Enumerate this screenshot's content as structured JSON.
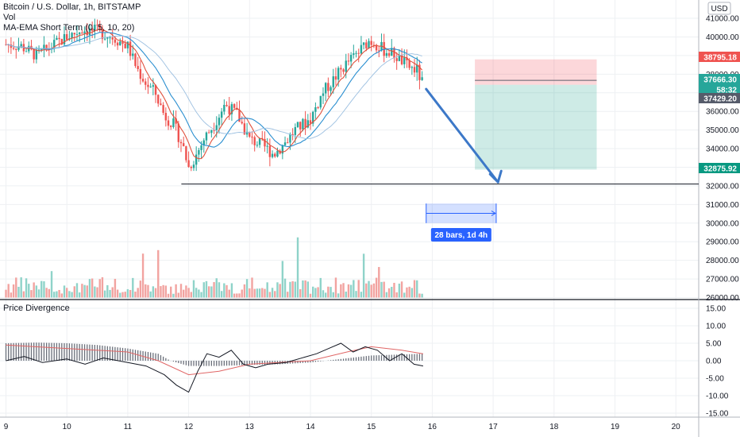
{
  "header": {
    "symbol": "Bitcoin / U.S. Dollar, 1h, BITSTAMP",
    "vol_label": "Vol",
    "ma_label": "MA-EMA Short Term (0, 5, 10, 20)",
    "currency": "USD"
  },
  "oscillator": {
    "title": "Price Divergence"
  },
  "price_tags": [
    {
      "value": "38795.18",
      "color": "#ef5350"
    },
    {
      "value": "37666.30",
      "color": "#26a69a"
    },
    {
      "value": "58:32",
      "color": "#26a69a"
    },
    {
      "value": "37429.20",
      "color": "#555b6a"
    },
    {
      "value": "32875.92",
      "color": "#089981"
    }
  ],
  "measure_label": "28 bars, 1d 4h",
  "colors": {
    "up": "#26a69a",
    "down": "#ef5350",
    "tp": "#089981",
    "arrow": "#3c78c8"
  },
  "chart_data": [
    {
      "type": "candlestick",
      "title": "Bitcoin / U.S. Dollar, 1h, BITSTAMP",
      "x_ticks": [
        "9",
        "10",
        "11",
        "12",
        "13",
        "14",
        "15",
        "16",
        "17",
        "18",
        "19",
        "20"
      ],
      "y_ticks": [
        26000,
        27000,
        28000,
        29000,
        30000,
        31000,
        32000,
        33000,
        34000,
        35000,
        36000,
        37000,
        38000,
        39000,
        40000,
        41000
      ],
      "ylim": [
        26000,
        41500
      ],
      "ohlc_path": [
        [
          9.0,
          39600
        ],
        [
          9.25,
          39500
        ],
        [
          9.5,
          39000
        ],
        [
          9.75,
          39500
        ],
        [
          10.0,
          40000
        ],
        [
          10.25,
          40400
        ],
        [
          10.5,
          40300
        ],
        [
          10.75,
          40000
        ],
        [
          11.0,
          39500
        ],
        [
          11.15,
          38300
        ],
        [
          11.3,
          37500
        ],
        [
          11.45,
          37000
        ],
        [
          11.6,
          35800
        ],
        [
          11.75,
          35300
        ],
        [
          11.9,
          34200
        ],
        [
          12.0,
          33000
        ],
        [
          12.1,
          33500
        ],
        [
          12.25,
          34500
        ],
        [
          12.45,
          35500
        ],
        [
          12.6,
          36400
        ],
        [
          12.8,
          35800
        ],
        [
          13.0,
          34500
        ],
        [
          13.2,
          34200
        ],
        [
          13.4,
          33700
        ],
        [
          13.55,
          34200
        ],
        [
          13.75,
          35000
        ],
        [
          14.0,
          35600
        ],
        [
          14.2,
          37000
        ],
        [
          14.4,
          37800
        ],
        [
          14.6,
          38600
        ],
        [
          14.8,
          39200
        ],
        [
          14.95,
          39800
        ],
        [
          15.05,
          39700
        ],
        [
          15.2,
          39300
        ],
        [
          15.35,
          39100
        ],
        [
          15.5,
          38700
        ],
        [
          15.6,
          38400
        ],
        [
          15.75,
          38200
        ],
        [
          15.85,
          37400
        ]
      ],
      "volume": {
        "y_range": [
          26000,
          30000
        ]
      },
      "moving_averages": [
        {
          "color": "#e0503c"
        },
        {
          "color": "#2a8fd0"
        },
        {
          "color": "#9bbfe0"
        }
      ],
      "annotations": {
        "support_line": 32100,
        "position": {
          "x_start": 16.7,
          "x_end": 18.7,
          "entry": 37429.2,
          "stop": 38795.18,
          "target": 32875.92
        },
        "arrow": {
          "from": [
            15.9,
            37200
          ],
          "to": [
            17.08,
            32200
          ]
        },
        "date_range": {
          "x_start": 15.9,
          "x_end": 17.05,
          "y_top": 31050,
          "y_bottom": 30000,
          "label": "28 bars, 1d 4h"
        }
      }
    },
    {
      "type": "line",
      "title": "Price Divergence",
      "y_ticks": [
        15,
        10,
        5,
        0,
        -5,
        -10,
        -15
      ],
      "ylim": [
        -17,
        17
      ],
      "series": [
        {
          "color": "#131722",
          "points": [
            [
              9.0,
              0
            ],
            [
              9.3,
              1.2
            ],
            [
              9.6,
              -0.5
            ],
            [
              10.0,
              0.5
            ],
            [
              10.3,
              -1
            ],
            [
              10.6,
              0.8
            ],
            [
              11.0,
              -0.5
            ],
            [
              11.3,
              -1.5
            ],
            [
              11.6,
              -4
            ],
            [
              11.8,
              -7
            ],
            [
              12.0,
              -9
            ],
            [
              12.15,
              -3
            ],
            [
              12.3,
              2
            ],
            [
              12.5,
              1
            ],
            [
              12.7,
              3
            ],
            [
              12.9,
              -1
            ],
            [
              13.1,
              -2
            ],
            [
              13.3,
              -1
            ],
            [
              13.6,
              -0.5
            ],
            [
              13.9,
              1
            ],
            [
              14.1,
              2
            ],
            [
              14.3,
              3.5
            ],
            [
              14.5,
              5
            ],
            [
              14.7,
              2.5
            ],
            [
              14.9,
              4
            ],
            [
              15.1,
              3
            ],
            [
              15.3,
              0
            ],
            [
              15.5,
              2
            ],
            [
              15.7,
              -1
            ],
            [
              15.85,
              -1.5
            ]
          ]
        },
        {
          "color": "#e06666",
          "points": [
            [
              9.0,
              4.5
            ],
            [
              10.0,
              3.5
            ],
            [
              11.0,
              2.5
            ],
            [
              11.5,
              0
            ],
            [
              12.0,
              -4
            ],
            [
              12.5,
              -3
            ],
            [
              13.0,
              -1
            ],
            [
              14.0,
              0
            ],
            [
              14.6,
              2.5
            ],
            [
              15.0,
              4
            ],
            [
              15.5,
              3
            ],
            [
              15.85,
              2
            ]
          ]
        },
        {
          "color": "#6a6f7a",
          "histogram": [
            [
              9.0,
              5
            ],
            [
              9.5,
              5.2
            ],
            [
              10.0,
              5
            ],
            [
              10.5,
              4.5
            ],
            [
              11.0,
              3.5
            ],
            [
              11.5,
              2
            ],
            [
              11.7,
              0
            ],
            [
              12.0,
              -1.5
            ],
            [
              12.5,
              -1.5
            ],
            [
              13.0,
              -1.2
            ],
            [
              13.5,
              -1
            ],
            [
              14.0,
              -0.5
            ],
            [
              14.5,
              0.5
            ],
            [
              15.0,
              1.5
            ],
            [
              15.85,
              2
            ]
          ]
        }
      ]
    }
  ]
}
